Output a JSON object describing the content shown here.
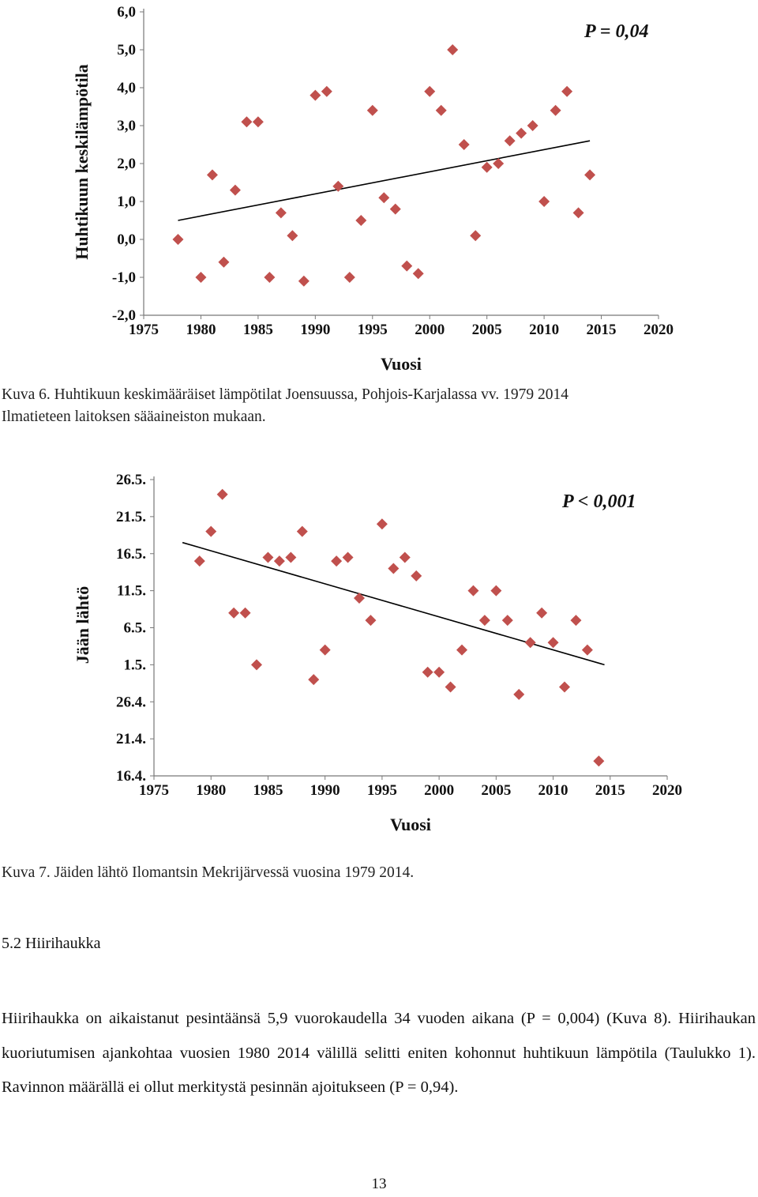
{
  "chart_data": [
    {
      "type": "scatter",
      "title": "",
      "xlabel": "Vuosi",
      "ylabel": "Huhtikuun keskilämpötila",
      "annotation": "P = 0,04",
      "xlim": [
        1975,
        2020
      ],
      "ylim": [
        -2.0,
        6.0
      ],
      "x_ticks": [
        1975,
        1980,
        1985,
        1990,
        1995,
        2000,
        2005,
        2010,
        2015,
        2020
      ],
      "x_tick_labels": [
        "1975",
        "1980",
        "1985",
        "1990",
        "1995",
        "2000",
        "2005",
        "2010",
        "2015",
        "2020"
      ],
      "y_ticks": [
        -2.0,
        -1.0,
        0.0,
        1.0,
        2.0,
        3.0,
        4.0,
        5.0,
        6.0
      ],
      "y_tick_labels": [
        "-2,0",
        "-1,0",
        "0,0",
        "1,0",
        "2,0",
        "3,0",
        "4,0",
        "5,0",
        "6,0"
      ],
      "marker_color": "#c0504d",
      "trendline": {
        "x": [
          1978,
          2014
        ],
        "y": [
          0.5,
          2.6
        ]
      },
      "points": [
        [
          1978,
          0.0
        ],
        [
          1980,
          -1.0
        ],
        [
          1981,
          1.7
        ],
        [
          1982,
          -0.6
        ],
        [
          1983,
          1.3
        ],
        [
          1984,
          3.1
        ],
        [
          1985,
          3.1
        ],
        [
          1986,
          -1.0
        ],
        [
          1987,
          0.7
        ],
        [
          1988,
          0.1
        ],
        [
          1989,
          -1.1
        ],
        [
          1990,
          3.8
        ],
        [
          1991,
          3.9
        ],
        [
          1992,
          1.4
        ],
        [
          1993,
          -1.0
        ],
        [
          1994,
          0.5
        ],
        [
          1995,
          3.4
        ],
        [
          1996,
          1.1
        ],
        [
          1997,
          0.8
        ],
        [
          1998,
          -0.7
        ],
        [
          1999,
          -0.9
        ],
        [
          2000,
          3.9
        ],
        [
          2001,
          3.4
        ],
        [
          2002,
          5.0
        ],
        [
          2003,
          2.5
        ],
        [
          2004,
          0.1
        ],
        [
          2005,
          1.9
        ],
        [
          2006,
          2.0
        ],
        [
          2007,
          2.6
        ],
        [
          2008,
          2.8
        ],
        [
          2009,
          3.0
        ],
        [
          2010,
          1.0
        ],
        [
          2011,
          3.4
        ],
        [
          2012,
          3.9
        ],
        [
          2013,
          0.7
        ],
        [
          2014,
          1.7
        ]
      ]
    },
    {
      "type": "scatter",
      "title": "",
      "xlabel": "Vuosi",
      "ylabel": "Jään lähtö",
      "annotation": "P < 0,001",
      "xlim": [
        1975,
        2020
      ],
      "ylim": [
        0,
        8
      ],
      "x_ticks": [
        1975,
        1980,
        1985,
        1990,
        1995,
        2000,
        2005,
        2010,
        2015,
        2020
      ],
      "x_tick_labels": [
        "1975",
        "1980",
        "1985",
        "1990",
        "1995",
        "2000",
        "2005",
        "2010",
        "2015",
        "2020"
      ],
      "y_ticks": [
        0,
        1,
        2,
        3,
        4,
        5,
        6,
        7,
        8
      ],
      "y_tick_labels": [
        "16.4.",
        "21.4.",
        "26.4.",
        "1.5.",
        "6.5.",
        "11.5.",
        "16.5.",
        "21.5.",
        "26.5."
      ],
      "y_unit_note": "tick index: 0 = 16.4., each step = 5 days",
      "marker_color": "#c0504d",
      "trendline": {
        "x": [
          1977.5,
          2014.5
        ],
        "y": [
          6.3,
          3.0
        ]
      },
      "points": [
        [
          1979,
          5.8
        ],
        [
          1980,
          6.6
        ],
        [
          1981,
          7.6
        ],
        [
          1982,
          4.4
        ],
        [
          1983,
          4.4
        ],
        [
          1984,
          3.0
        ],
        [
          1985,
          5.9
        ],
        [
          1986,
          5.8
        ],
        [
          1987,
          5.9
        ],
        [
          1988,
          6.6
        ],
        [
          1989,
          2.6
        ],
        [
          1990,
          3.4
        ],
        [
          1991,
          5.8
        ],
        [
          1992,
          5.9
        ],
        [
          1993,
          4.8
        ],
        [
          1994,
          4.2
        ],
        [
          1995,
          6.8
        ],
        [
          1996,
          5.6
        ],
        [
          1997,
          5.9
        ],
        [
          1998,
          5.4
        ],
        [
          1999,
          2.8
        ],
        [
          2000,
          2.8
        ],
        [
          2001,
          2.4
        ],
        [
          2002,
          3.4
        ],
        [
          2003,
          5.0
        ],
        [
          2004,
          4.2
        ],
        [
          2005,
          5.0
        ],
        [
          2006,
          4.2
        ],
        [
          2007,
          2.2
        ],
        [
          2008,
          3.6
        ],
        [
          2009,
          4.4
        ],
        [
          2010,
          3.6
        ],
        [
          2011,
          2.4
        ],
        [
          2012,
          4.2
        ],
        [
          2013,
          3.4
        ],
        [
          2014,
          0.4
        ]
      ]
    }
  ],
  "captions": {
    "fig6_line1": "Kuva 6. Huhtikuun keskimääräiset lämpötilat Joensuussa, Pohjois-Karjalassa vv. 1979 2014",
    "fig6_line2": "Ilmatieteen laitoksen sääaineiston mukaan.",
    "fig7": "Kuva 7. Jäiden lähtö Ilomantsin Mekrijärvessä vuosina 1979 2014."
  },
  "section_heading": "5.2 Hiirihaukka",
  "paragraph": "Hiirihaukka on aikaistanut pesintäänsä 5,9 vuorokaudella 34 vuoden aikana (P = 0,004) (Kuva 8). Hiirihaukan kuoriutumisen ajankohtaa vuosien 1980 2014 välillä selitti eniten kohonnut huhtikuun lämpötila (Taulukko 1). Ravinnon määrällä ei ollut merkitystä pesinnän ajoitukseen (P = 0,94).",
  "page_number": "13"
}
